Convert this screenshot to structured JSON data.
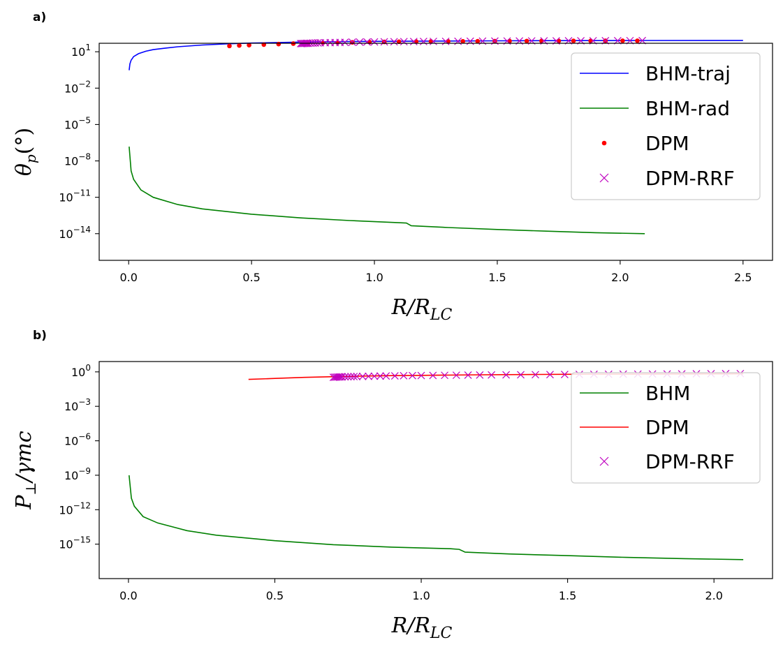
{
  "chart_data": [
    {
      "panel_label": "a)",
      "type": "line",
      "ylabel": "θp(°)",
      "xlabel": "R/RLC",
      "xlim": [
        -0.12,
        2.62
      ],
      "ylog": true,
      "ylim_exp": [
        -16.2,
        1.7
      ],
      "x_ticks": [
        "0.0",
        "0.5",
        "1.0",
        "1.5",
        "2.0",
        "2.5"
      ],
      "x_tick_values": [
        0.0,
        0.5,
        1.0,
        1.5,
        2.0,
        2.5
      ],
      "y_tick_exps": [
        1,
        -2,
        -5,
        -8,
        -11,
        -14
      ],
      "legend_position": "upper right",
      "series": [
        {
          "name": "BHM-traj",
          "kind": "line",
          "color": "#0000ff",
          "x": [
            0.002,
            0.005,
            0.01,
            0.02,
            0.04,
            0.07,
            0.1,
            0.15,
            0.2,
            0.3,
            0.4,
            0.5,
            0.7,
            0.9,
            1.2,
            1.5,
            1.8,
            2.1,
            2.5
          ],
          "y": [
            0.3,
            1.0,
            2.0,
            4.0,
            7.0,
            11.0,
            15.0,
            20.0,
            26.0,
            36.0,
            45.0,
            52.0,
            63.0,
            70.0,
            76.0,
            80.0,
            83.0,
            85.0,
            86.0
          ]
        },
        {
          "name": "BHM-rad",
          "kind": "line",
          "color": "#008000",
          "x": [
            0.002,
            0.01,
            0.02,
            0.05,
            0.1,
            0.2,
            0.3,
            0.5,
            0.7,
            0.9,
            1.1,
            1.13,
            1.15,
            1.3,
            1.5,
            1.7,
            1.9,
            2.1
          ],
          "y": [
            1.5e-07,
            1.5e-09,
            3e-10,
            4e-11,
            1e-11,
            2.5e-12,
            1.1e-12,
            4e-13,
            2e-13,
            1.2e-13,
            8e-14,
            7.5e-14,
            4.5e-14,
            3.2e-14,
            2.2e-14,
            1.6e-14,
            1.2e-14,
            1e-14
          ]
        },
        {
          "name": "DPM",
          "kind": "points",
          "color": "#ff0000",
          "x": [
            0.41,
            0.45,
            0.49,
            0.55,
            0.61,
            0.67,
            0.73,
            0.79,
            0.85,
            0.91,
            0.98,
            1.04,
            1.1,
            1.17,
            1.23,
            1.3,
            1.36,
            1.42,
            1.49,
            1.55,
            1.62,
            1.68,
            1.75,
            1.81,
            1.88,
            1.94,
            2.01,
            2.07
          ],
          "y": [
            30,
            33,
            35,
            39,
            43,
            47,
            50,
            54,
            57,
            60,
            63,
            65,
            67,
            69,
            71,
            72,
            73,
            74,
            75,
            76,
            77,
            78,
            78.5,
            79,
            79.5,
            80,
            80.5,
            81
          ]
        },
        {
          "name": "DPM-RRF",
          "kind": "crosses",
          "color": "#bf00bf",
          "x": [
            0.7,
            0.705,
            0.71,
            0.715,
            0.72,
            0.725,
            0.73,
            0.74,
            0.75,
            0.76,
            0.77,
            0.78,
            0.8,
            0.82,
            0.84,
            0.86,
            0.88,
            0.91,
            0.94,
            0.97,
            1.0,
            1.04,
            1.08,
            1.12,
            1.16,
            1.2,
            1.24,
            1.29,
            1.34,
            1.39,
            1.44,
            1.49,
            1.54,
            1.59,
            1.64,
            1.69,
            1.74,
            1.79,
            1.84,
            1.89,
            1.94,
            1.99,
            2.04,
            2.09
          ],
          "y": [
            47,
            47.5,
            48,
            48.5,
            49,
            49.5,
            50,
            51,
            52,
            53,
            54,
            55,
            56,
            57,
            58,
            59,
            60,
            62,
            63,
            64,
            65,
            66,
            67,
            68,
            69,
            70,
            71,
            72,
            73,
            74,
            75,
            76,
            77,
            78,
            78.5,
            79,
            79.5,
            80,
            80.5,
            81,
            81.5,
            82,
            82.5,
            83
          ]
        }
      ]
    },
    {
      "panel_label": "b)",
      "type": "line",
      "ylabel": "P⊥/γmc",
      "xlabel": "R/RLC",
      "xlim": [
        -0.1,
        2.2
      ],
      "ylog": true,
      "ylim_exp": [
        -18.0,
        0.9
      ],
      "x_ticks": [
        "0.0",
        "0.5",
        "1.0",
        "1.5",
        "2.0"
      ],
      "x_tick_values": [
        0.0,
        0.5,
        1.0,
        1.5,
        2.0
      ],
      "y_tick_exps": [
        0,
        -3,
        -6,
        -9,
        -12,
        -15
      ],
      "legend_position": "upper right",
      "series": [
        {
          "name": "BHM",
          "kind": "line",
          "color": "#008000",
          "x": [
            0.002,
            0.01,
            0.02,
            0.05,
            0.1,
            0.2,
            0.3,
            0.5,
            0.7,
            0.9,
            1.1,
            1.13,
            1.15,
            1.3,
            1.5,
            1.7,
            1.9,
            2.1
          ],
          "y": [
            1e-09,
            1e-11,
            2e-12,
            2.5e-13,
            7e-14,
            1.5e-14,
            6e-15,
            2e-15,
            9e-16,
            5.5e-16,
            4e-16,
            3.5e-16,
            2e-16,
            1.4e-16,
            1e-16,
            7e-17,
            5.5e-17,
            4.5e-17
          ]
        },
        {
          "name": "DPM",
          "kind": "line",
          "color": "#ff0000",
          "x": [
            0.41,
            0.5,
            0.6,
            0.7,
            0.8,
            0.9,
            1.0,
            1.2,
            1.4,
            1.6,
            1.8,
            2.0,
            2.1
          ],
          "y": [
            0.22,
            0.27,
            0.33,
            0.38,
            0.43,
            0.47,
            0.5,
            0.56,
            0.6,
            0.63,
            0.65,
            0.67,
            0.68
          ]
        },
        {
          "name": "DPM-RRF",
          "kind": "crosses",
          "color": "#bf00bf",
          "x": [
            0.7,
            0.705,
            0.71,
            0.715,
            0.72,
            0.725,
            0.73,
            0.74,
            0.75,
            0.76,
            0.77,
            0.78,
            0.8,
            0.82,
            0.84,
            0.86,
            0.88,
            0.91,
            0.94,
            0.97,
            1.0,
            1.04,
            1.08,
            1.12,
            1.16,
            1.2,
            1.24,
            1.29,
            1.34,
            1.39,
            1.44,
            1.49,
            1.54,
            1.59,
            1.64,
            1.69,
            1.74,
            1.79,
            1.84,
            1.89,
            1.94,
            1.99,
            2.04,
            2.09
          ],
          "y": [
            0.34,
            0.345,
            0.35,
            0.355,
            0.36,
            0.365,
            0.37,
            0.375,
            0.38,
            0.385,
            0.39,
            0.395,
            0.4,
            0.41,
            0.42,
            0.43,
            0.44,
            0.45,
            0.46,
            0.47,
            0.48,
            0.49,
            0.5,
            0.51,
            0.52,
            0.53,
            0.54,
            0.55,
            0.56,
            0.57,
            0.58,
            0.59,
            0.6,
            0.61,
            0.62,
            0.63,
            0.64,
            0.65,
            0.66,
            0.67,
            0.68,
            0.69,
            0.7,
            0.71
          ]
        }
      ]
    }
  ]
}
